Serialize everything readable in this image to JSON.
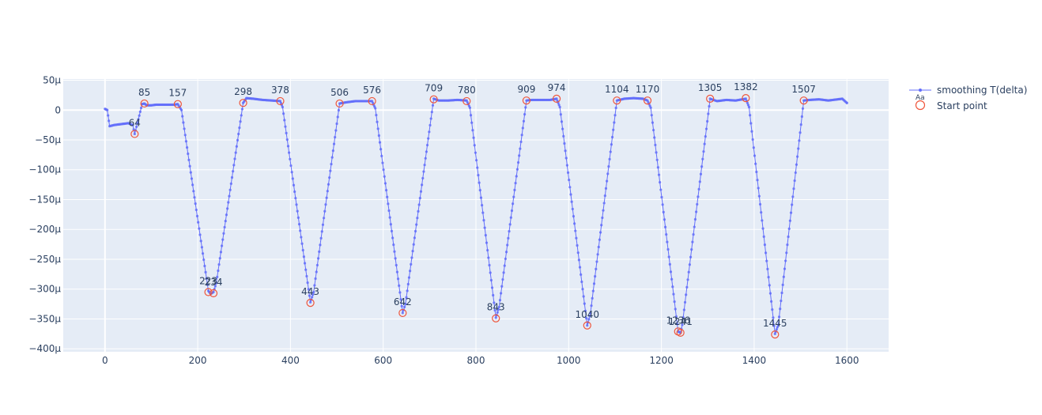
{
  "chart_data": {
    "type": "line",
    "title": "",
    "xlabel": "",
    "ylabel": "",
    "xlim": [
      -90,
      1690
    ],
    "ylim": [
      -0.000405,
      5.2e-05
    ],
    "x_ticks": [
      0,
      200,
      400,
      600,
      800,
      1000,
      1200,
      1400,
      1600
    ],
    "x_tick_labels": [
      "0",
      "200",
      "400",
      "600",
      "800",
      "1000",
      "1200",
      "1400",
      "1600"
    ],
    "y_ticks": [
      5e-05,
      0,
      -5e-05,
      -0.0001,
      -0.00015,
      -0.0002,
      -0.00025,
      -0.0003,
      -0.00035,
      -0.0004
    ],
    "y_tick_labels": [
      "50μ",
      "0",
      "−50μ",
      "−100μ",
      "−150μ",
      "−200μ",
      "−250μ",
      "−300μ",
      "−350μ",
      "−400μ"
    ],
    "grid": true,
    "legend_position": "top-right",
    "colors": {
      "line": "#636efa",
      "start_point": "#ef553b",
      "plot_bg": "#e5ecf6",
      "grid": "#ffffff",
      "text": "#2a3f5f"
    },
    "series": [
      {
        "name": "smoothing T(delta)",
        "mode": "lines+markers",
        "legend_symbol_text": "Aa",
        "x": [
          0,
          5,
          10,
          20,
          30,
          40,
          50,
          60,
          64,
          70,
          80,
          85,
          90,
          100,
          110,
          120,
          130,
          140,
          150,
          157,
          165,
          223,
          228,
          234,
          240,
          298,
          305,
          320,
          340,
          360,
          378,
          383,
          443,
          450,
          506,
          520,
          540,
          560,
          576,
          583,
          642,
          648,
          709,
          720,
          740,
          760,
          780,
          787,
          843,
          850,
          909,
          920,
          940,
          960,
          974,
          981,
          1040,
          1047,
          1104,
          1120,
          1140,
          1160,
          1170,
          1177,
          1236,
          1241,
          1245,
          1305,
          1320,
          1340,
          1360,
          1382,
          1389,
          1445,
          1452,
          1507,
          1520,
          1540,
          1560,
          1580,
          1590,
          1600
        ],
        "y": [
          2e-06,
          0,
          -2.7e-05,
          -2.5e-05,
          -2.4e-05,
          -2.3e-05,
          -2.2e-05,
          -2.5e-05,
          -4e-05,
          -2.2e-05,
          1e-05,
          1.1e-05,
          8e-06,
          8e-06,
          9e-06,
          9e-06,
          9e-06,
          9e-06,
          9e-06,
          1e-05,
          0,
          -0.000303,
          -0.000308,
          -0.000305,
          -0.00029,
          1.2e-05,
          2e-05,
          1.9e-05,
          1.7e-05,
          1.6e-05,
          1.5e-05,
          5e-06,
          -0.000322,
          -0.000305,
          1.1e-05,
          1.3e-05,
          1.5e-05,
          1.5e-05,
          1.5e-05,
          3e-06,
          -0.00034,
          -0.000325,
          1.9e-05,
          1.6e-05,
          1.6e-05,
          1.7e-05,
          1.6e-05,
          4e-06,
          -0.000348,
          -0.00033,
          1.6e-05,
          1.7e-05,
          1.7e-05,
          1.7e-05,
          1.9e-05,
          5e-06,
          -0.000361,
          -0.00034,
          1.6e-05,
          1.9e-05,
          2e-05,
          1.9e-05,
          1.6e-05,
          4e-06,
          -0.000371,
          -0.000373,
          -0.00036,
          1.9e-05,
          1.5e-05,
          1.7e-05,
          1.6e-05,
          1.9e-05,
          5e-06,
          -0.000375,
          -0.00036,
          1.6e-05,
          1.7e-05,
          1.8e-05,
          1.6e-05,
          1.8e-05,
          1.9e-05,
          1.2e-05
        ]
      },
      {
        "name": "Start point",
        "mode": "markers",
        "x": [
          64,
          85,
          157,
          223,
          234,
          298,
          378,
          443,
          506,
          576,
          642,
          709,
          780,
          843,
          909,
          974,
          1040,
          1104,
          1170,
          1236,
          1241,
          1305,
          1382,
          1445,
          1507
        ],
        "y": [
          -4e-05,
          1.1e-05,
          1e-05,
          -0.000305,
          -0.000307,
          1.2e-05,
          1.5e-05,
          -0.000323,
          1.1e-05,
          1.5e-05,
          -0.00034,
          1.8e-05,
          1.5e-05,
          -0.000349,
          1.6e-05,
          1.9e-05,
          -0.000361,
          1.6e-05,
          1.6e-05,
          -0.000371,
          -0.000373,
          1.9e-05,
          2e-05,
          -0.000376,
          1.6e-05
        ]
      }
    ],
    "annotations": [
      {
        "x": 64,
        "y": -4e-05,
        "text": "64"
      },
      {
        "x": 85,
        "y": 1.1e-05,
        "text": "85"
      },
      {
        "x": 157,
        "y": 1e-05,
        "text": "157"
      },
      {
        "x": 223,
        "y": -0.000305,
        "text": "223"
      },
      {
        "x": 234,
        "y": -0.000307,
        "text": "234"
      },
      {
        "x": 298,
        "y": 1.2e-05,
        "text": "298"
      },
      {
        "x": 378,
        "y": 1.5e-05,
        "text": "378"
      },
      {
        "x": 443,
        "y": -0.000323,
        "text": "443"
      },
      {
        "x": 506,
        "y": 1.1e-05,
        "text": "506"
      },
      {
        "x": 576,
        "y": 1.5e-05,
        "text": "576"
      },
      {
        "x": 642,
        "y": -0.00034,
        "text": "642"
      },
      {
        "x": 709,
        "y": 1.8e-05,
        "text": "709"
      },
      {
        "x": 780,
        "y": 1.5e-05,
        "text": "780"
      },
      {
        "x": 843,
        "y": -0.000349,
        "text": "843"
      },
      {
        "x": 909,
        "y": 1.6e-05,
        "text": "909"
      },
      {
        "x": 974,
        "y": 1.9e-05,
        "text": "974"
      },
      {
        "x": 1040,
        "y": -0.000361,
        "text": "1040"
      },
      {
        "x": 1104,
        "y": 1.6e-05,
        "text": "1104"
      },
      {
        "x": 1170,
        "y": 1.6e-05,
        "text": "1170"
      },
      {
        "x": 1236,
        "y": -0.000371,
        "text": "1236"
      },
      {
        "x": 1241,
        "y": -0.000373,
        "text": "1241"
      },
      {
        "x": 1305,
        "y": 1.9e-05,
        "text": "1305"
      },
      {
        "x": 1382,
        "y": 2e-05,
        "text": "1382"
      },
      {
        "x": 1445,
        "y": -0.000376,
        "text": "1445"
      },
      {
        "x": 1507,
        "y": 1.6e-05,
        "text": "1507"
      }
    ]
  }
}
